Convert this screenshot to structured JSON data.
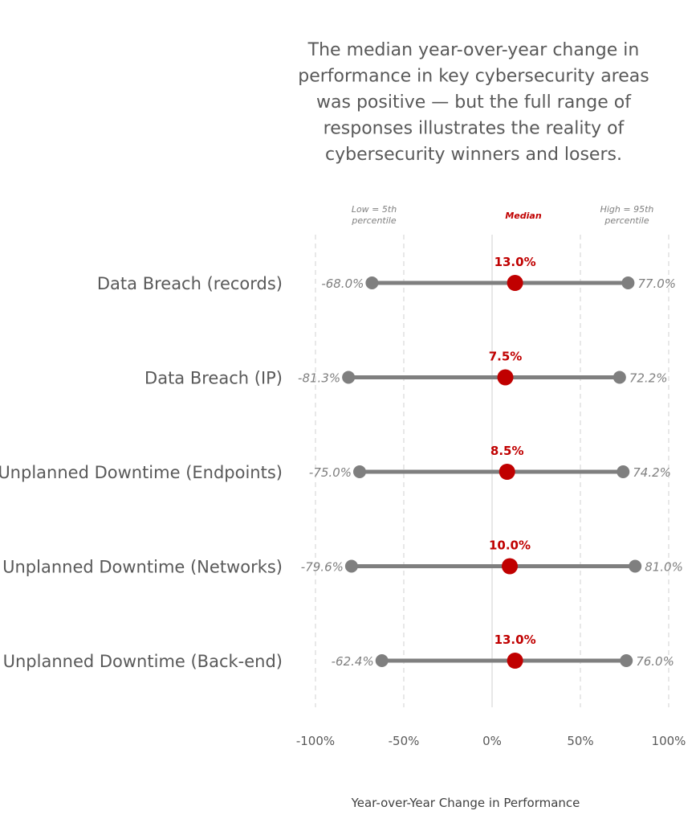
{
  "title_lines": [
    "The median year-over-year change in",
    "performance in key cybersecurity areas",
    "was positive — but the full range of",
    "responses illustrates the reality of",
    "cybersecurity winners and losers."
  ],
  "headers": {
    "low": [
      "Low = 5th",
      "percentile"
    ],
    "median": "Median",
    "high": [
      "High = 95th",
      "percentile"
    ]
  },
  "colors": {
    "range": "#7f7f7f",
    "median": "#c00000",
    "grid": "#d9d9d9",
    "zero_line": "#d9d9d9",
    "text": "#595959"
  },
  "chart_data": {
    "type": "dumbbell",
    "title": "The median year-over-year change in performance in key cybersecurity areas was positive — but the full range of responses illustrates the reality of cybersecurity winners and losers.",
    "xlabel": "Year-over-Year Change in Performance",
    "ylabel": "",
    "xlim": [
      -100,
      100
    ],
    "xticks": [
      -100,
      -50,
      0,
      50,
      100
    ],
    "xtick_labels": [
      "-100%",
      "-50%",
      "0%",
      "50%",
      "100%"
    ],
    "grid": "vertical dashed",
    "categories": [
      "Data Breach (records)",
      "Data Breach (IP)",
      "Unplanned Downtime (Endpoints)",
      "Unplanned Downtime (Networks)",
      "Unplanned Downtime (Back-end)"
    ],
    "series": [
      {
        "name": "Low = 5th percentile",
        "values": [
          -68.0,
          -81.3,
          -75.0,
          -79.6,
          -62.4
        ],
        "labels": [
          "-68.0%",
          "-81.3%",
          "-75.0%",
          "-79.6%",
          "-62.4%"
        ]
      },
      {
        "name": "Median",
        "values": [
          13.0,
          7.5,
          8.5,
          10.0,
          13.0
        ],
        "labels": [
          "13.0%",
          "7.5%",
          "8.5%",
          "10.0%",
          "13.0%"
        ]
      },
      {
        "name": "High = 95th percentile",
        "values": [
          77.0,
          72.2,
          74.2,
          81.0,
          76.0
        ],
        "labels": [
          "77.0%",
          "72.2%",
          "74.2%",
          "81.0%",
          "76.0%"
        ]
      }
    ]
  }
}
